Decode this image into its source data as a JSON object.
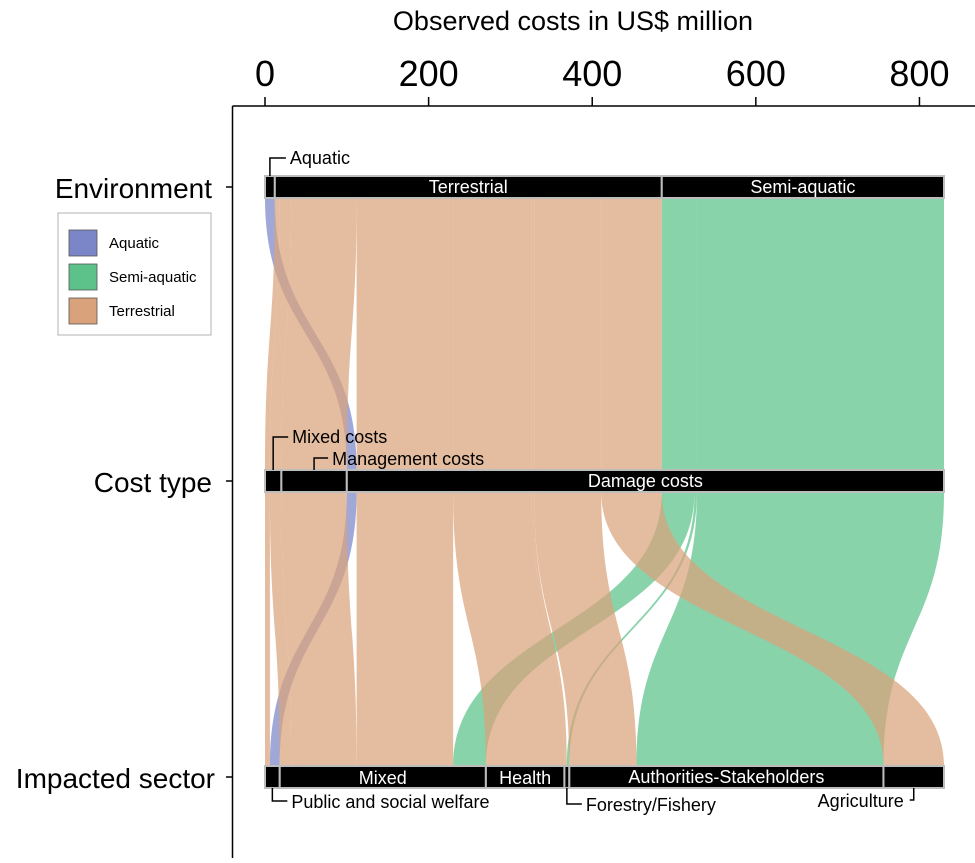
{
  "chart_data": {
    "type": "alluvial",
    "title": "Observed costs in US$ million",
    "xlim": [
      0,
      830
    ],
    "x_ticks": [
      "0",
      "200",
      "400",
      "600",
      "800"
    ],
    "tick_values": [
      0,
      200,
      400,
      600,
      800
    ],
    "axis_labels": [
      "Environment",
      "Cost type",
      "Impacted sector"
    ],
    "legend": {
      "position": "top-left",
      "entries": [
        {
          "name": "Aquatic",
          "color": "#7b86c9"
        },
        {
          "name": "Semi-aquatic",
          "color": "#5cc28a"
        },
        {
          "name": "Terrestrial",
          "color": "#daa27a"
        }
      ]
    },
    "strata": {
      "environment": [
        {
          "label": "Aquatic",
          "value": 12
        },
        {
          "label": "Terrestrial",
          "value": 473
        },
        {
          "label": "Semi-aquatic",
          "value": 345
        }
      ],
      "cost_type": [
        {
          "label": "Mixed costs",
          "value": 20
        },
        {
          "label": "Management costs",
          "value": 80
        },
        {
          "label": "Damage costs",
          "value": 730
        }
      ],
      "impacted_sector": [
        {
          "label": "Public and social welfare",
          "value": 18
        },
        {
          "label": "Mixed",
          "value": 252
        },
        {
          "label": "Health",
          "value": 96
        },
        {
          "label": "Forestry/Fishery",
          "value": 6
        },
        {
          "label": "Authorities-Stakeholders",
          "value": 384
        },
        {
          "label": "Agriculture",
          "value": 74
        }
      ]
    },
    "flows": [
      {
        "environment": "Aquatic",
        "cost_type": "Damage costs",
        "impacted_sector": "Public and social welfare",
        "group": "Aquatic",
        "value": 12
      },
      {
        "environment": "Terrestrial",
        "cost_type": "Mixed costs",
        "impacted_sector": "Public and social welfare",
        "group": "Terrestrial",
        "value": 6
      },
      {
        "environment": "Terrestrial",
        "cost_type": "Mixed costs",
        "impacted_sector": "Mixed",
        "group": "Terrestrial",
        "value": 14
      },
      {
        "environment": "Terrestrial",
        "cost_type": "Management costs",
        "impacted_sector": "Mixed",
        "group": "Terrestrial",
        "value": 80
      },
      {
        "environment": "Terrestrial",
        "cost_type": "Damage costs",
        "impacted_sector": "Mixed",
        "group": "Terrestrial",
        "value": 118
      },
      {
        "environment": "Semi-aquatic",
        "cost_type": "Damage costs",
        "impacted_sector": "Mixed",
        "group": "Semi-aquatic",
        "value": 40
      },
      {
        "environment": "Terrestrial",
        "cost_type": "Damage costs",
        "impacted_sector": "Health",
        "group": "Terrestrial",
        "value": 96
      },
      {
        "environment": "Terrestrial",
        "cost_type": "Damage costs",
        "impacted_sector": "Forestry/Fishery",
        "group": "Terrestrial",
        "value": 3
      },
      {
        "environment": "Semi-aquatic",
        "cost_type": "Damage costs",
        "impacted_sector": "Forestry/Fishery",
        "group": "Semi-aquatic",
        "value": 3
      },
      {
        "environment": "Terrestrial",
        "cost_type": "Damage costs",
        "impacted_sector": "Authorities-Stakeholders",
        "group": "Terrestrial",
        "value": 82
      },
      {
        "environment": "Semi-aquatic",
        "cost_type": "Damage costs",
        "impacted_sector": "Authorities-Stakeholders",
        "group": "Semi-aquatic",
        "value": 302
      },
      {
        "environment": "Terrestrial",
        "cost_type": "Damage costs",
        "impacted_sector": "Agriculture",
        "group": "Terrestrial",
        "value": 74
      }
    ]
  }
}
